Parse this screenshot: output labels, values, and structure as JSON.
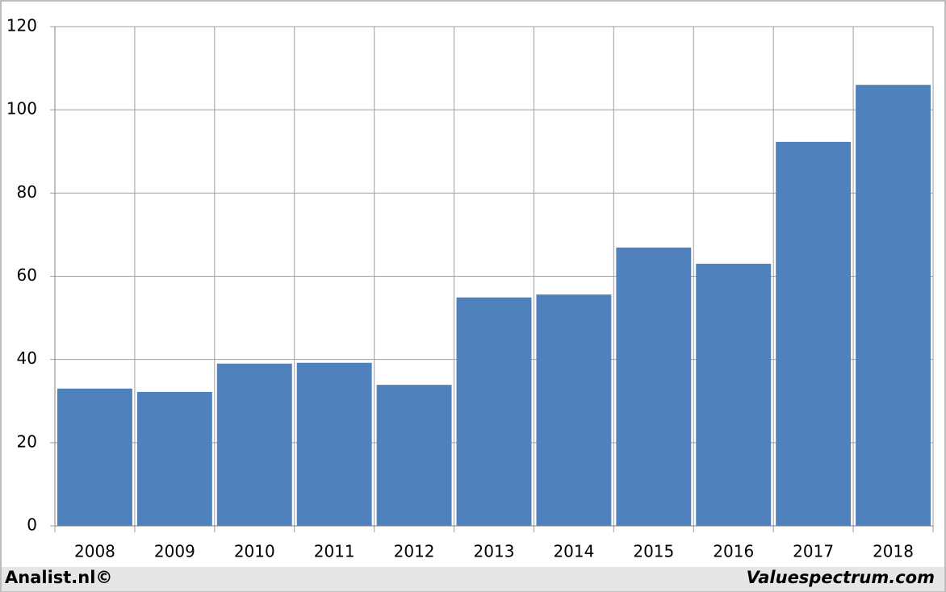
{
  "chart_data": {
    "type": "bar",
    "categories": [
      "2008",
      "2009",
      "2010",
      "2011",
      "2012",
      "2013",
      "2014",
      "2015",
      "2016",
      "2017",
      "2018"
    ],
    "values": [
      33.0,
      32.2,
      39.0,
      39.2,
      33.9,
      54.9,
      55.6,
      66.9,
      63.0,
      92.3,
      106.0
    ],
    "color": "#4f81bd",
    "ylim": [
      0,
      120
    ],
    "yticks": [
      0,
      20,
      40,
      60,
      80,
      100,
      120
    ],
    "grid": true,
    "annotations": [
      "Analist.nl©",
      "Valuespectrum.com"
    ]
  }
}
